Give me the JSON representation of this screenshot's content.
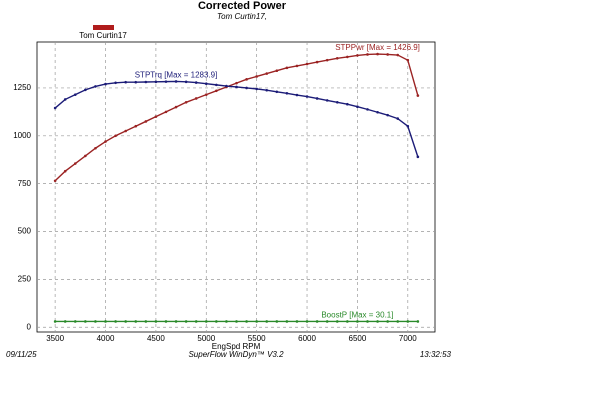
{
  "chart_data": {
    "type": "line",
    "title": "Corrected Power",
    "subtitle": "Tom Curtin17,",
    "legend": {
      "label": "Tom Curtin17",
      "color": "#b01c1c"
    },
    "x_label": "EngSpd RPM",
    "footer": {
      "date": "09/11/25",
      "software": "SuperFlow WinDyn™ V3.2",
      "time": "13:32:53"
    },
    "x": [
      3500,
      3600,
      3700,
      3800,
      3900,
      4000,
      4100,
      4200,
      4300,
      4400,
      4500,
      4600,
      4700,
      4800,
      4900,
      5000,
      5100,
      5200,
      5300,
      5400,
      5500,
      5600,
      5700,
      5800,
      5900,
      6000,
      6100,
      6200,
      6300,
      6400,
      6500,
      6600,
      6700,
      6800,
      6900,
      7000,
      7100
    ],
    "series": [
      {
        "label": "STPPwr [Max = 1426.9]",
        "color": "#9b2323",
        "values": [
          765,
          815,
          855,
          895,
          935,
          970,
          1000,
          1025,
          1050,
          1075,
          1100,
          1125,
          1150,
          1175,
          1195,
          1215,
          1235,
          1255,
          1275,
          1295,
          1310,
          1325,
          1340,
          1355,
          1365,
          1375,
          1385,
          1395,
          1405,
          1412,
          1420,
          1425,
          1426.9,
          1425,
          1422,
          1395,
          1210
        ]
      },
      {
        "label": "STPTrq [Max = 1283.9]",
        "color": "#1c1c78",
        "values": [
          1145,
          1190,
          1215,
          1240,
          1258,
          1270,
          1277,
          1280,
          1280,
          1281,
          1282,
          1283,
          1283.9,
          1282,
          1278,
          1272,
          1266,
          1260,
          1255,
          1250,
          1245,
          1238,
          1230,
          1222,
          1213,
          1205,
          1195,
          1185,
          1175,
          1165,
          1152,
          1138,
          1123,
          1108,
          1090,
          1050,
          890
        ]
      },
      {
        "label": "BoostP [Max = 30.1]",
        "color": "#2a8a2a",
        "values": [
          30,
          30,
          30,
          30,
          30,
          30,
          30,
          30,
          30,
          30,
          30,
          30,
          30,
          30,
          30,
          30,
          30,
          30,
          30,
          30,
          30,
          30,
          30,
          30,
          30,
          30,
          30,
          30,
          30,
          30,
          30.1,
          30,
          30,
          30,
          30,
          30,
          30
        ]
      }
    ],
    "xlim": [
      3320,
      7270
    ],
    "xticks": [
      3500,
      4000,
      4500,
      5000,
      5500,
      6000,
      6500,
      7000
    ],
    "ylim": [
      -25,
      1490
    ],
    "yticks": [
      0,
      250,
      500,
      750,
      1000,
      1250
    ],
    "grid": true
  }
}
